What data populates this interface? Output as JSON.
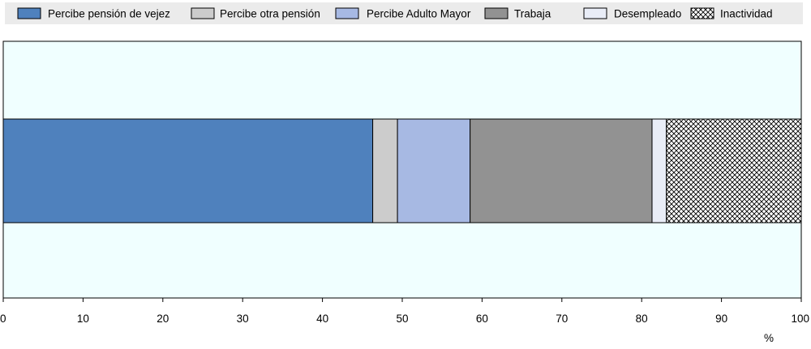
{
  "chart_data": {
    "type": "bar",
    "orientation": "horizontal",
    "stacked": true,
    "categories": [
      ""
    ],
    "series": [
      {
        "name": "Percibe pensión de vejez",
        "values": [
          46.3
        ],
        "color": "#4F81BD",
        "pattern": "solid"
      },
      {
        "name": "Percibe otra pensión",
        "values": [
          3.1
        ],
        "color": "#CCCCCC",
        "pattern": "solid"
      },
      {
        "name": "Percibe Adulto Mayor",
        "values": [
          9.1
        ],
        "color": "#A7B9E3",
        "pattern": "solid"
      },
      {
        "name": "Trabaja",
        "values": [
          22.8
        ],
        "color": "#929292",
        "pattern": "solid"
      },
      {
        "name": "Desempleado",
        "values": [
          1.8
        ],
        "color": "#E9EDF7",
        "pattern": "solid"
      },
      {
        "name": "Inactividad",
        "values": [
          16.9
        ],
        "color": "#FFFFFF",
        "pattern": "crosshatch"
      }
    ],
    "xlim": [
      0,
      100
    ],
    "xticks": [
      0,
      10,
      20,
      30,
      40,
      50,
      60,
      70,
      80,
      90,
      100
    ],
    "xlabel": "%",
    "ylabel": "",
    "title": "",
    "grid": false,
    "legend_position": "top",
    "plot_background": "#F0FFFF"
  }
}
